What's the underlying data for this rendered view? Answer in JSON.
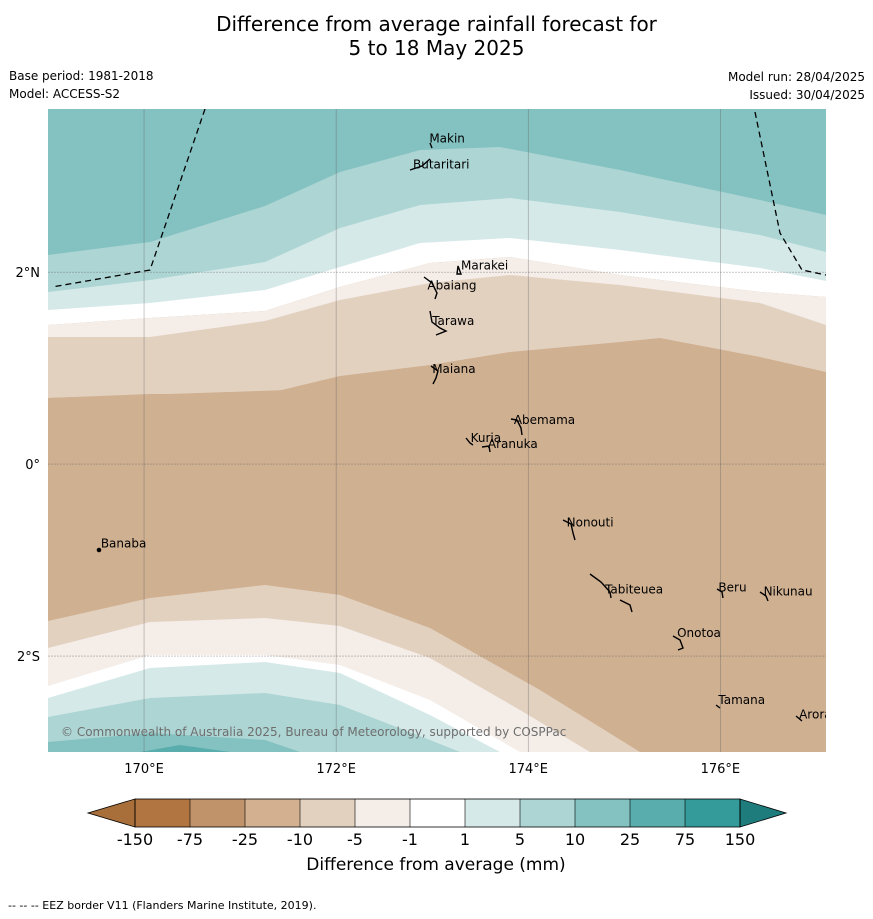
{
  "title": {
    "line1": "Difference from average rainfall forecast for",
    "line2": "5 to 18 May 2025"
  },
  "meta": {
    "base_period": "Base period: 1981-2018",
    "model": "Model: ACCESS-S2",
    "model_run": "Model run: 28/04/2025",
    "issued": "Issued: 30/04/2025"
  },
  "map": {
    "lon_range": [
      169,
      177.1
    ],
    "lat_range": [
      -3.0,
      3.7
    ],
    "lon_ticks": [
      "170°E",
      "172°E",
      "174°E",
      "176°E"
    ],
    "lat_ticks": [
      "2°N",
      "0°",
      "2°S"
    ],
    "copyright": "© Commonwealth of Australia 2025, Bureau of Meteorology, supported by COSPPac",
    "places": [
      {
        "name": "Makin",
        "lon": 172.97,
        "lat": 3.35
      },
      {
        "name": "Butaritari",
        "lon": 172.8,
        "lat": 3.08
      },
      {
        "name": "Marakei",
        "lon": 173.3,
        "lat": 2.03
      },
      {
        "name": "Abaiang",
        "lon": 172.95,
        "lat": 1.82
      },
      {
        "name": "Tarawa",
        "lon": 173.0,
        "lat": 1.45
      },
      {
        "name": "Maiana",
        "lon": 173.0,
        "lat": 0.95
      },
      {
        "name": "Abemama",
        "lon": 173.85,
        "lat": 0.42
      },
      {
        "name": "Kuria",
        "lon": 173.4,
        "lat": 0.23
      },
      {
        "name": "Aranuka",
        "lon": 173.58,
        "lat": 0.17
      },
      {
        "name": "Nonouti",
        "lon": 174.4,
        "lat": -0.65
      },
      {
        "name": "Banaba",
        "lon": 169.55,
        "lat": -0.87
      },
      {
        "name": "Tabiteuea",
        "lon": 174.8,
        "lat": -1.35
      },
      {
        "name": "Beru",
        "lon": 175.98,
        "lat": -1.33
      },
      {
        "name": "Nikunau",
        "lon": 176.45,
        "lat": -1.37
      },
      {
        "name": "Onotoa",
        "lon": 175.55,
        "lat": -1.8
      },
      {
        "name": "Tamana",
        "lon": 175.98,
        "lat": -2.5
      },
      {
        "name": "Arorae",
        "lon": 176.82,
        "lat": -2.65
      }
    ]
  },
  "legend": {
    "levels": [
      "-150",
      "-75",
      "-25",
      "-10",
      "-5",
      "-1",
      "1",
      "5",
      "10",
      "25",
      "75",
      "150"
    ],
    "colors": [
      "#a86f3a",
      "#b07540",
      "#c0936a",
      "#d2b090",
      "#e3d1c0",
      "#f4ede8",
      "#ffffff",
      "#d5e9e8",
      "#acd5d4",
      "#84c1c1",
      "#5aadad",
      "#349a9a",
      "#1f7c7c"
    ],
    "label": "Difference from average (mm)"
  },
  "footer": "--  --  -- EEZ border V11 (Flanders Marine Institute, 2019)."
}
